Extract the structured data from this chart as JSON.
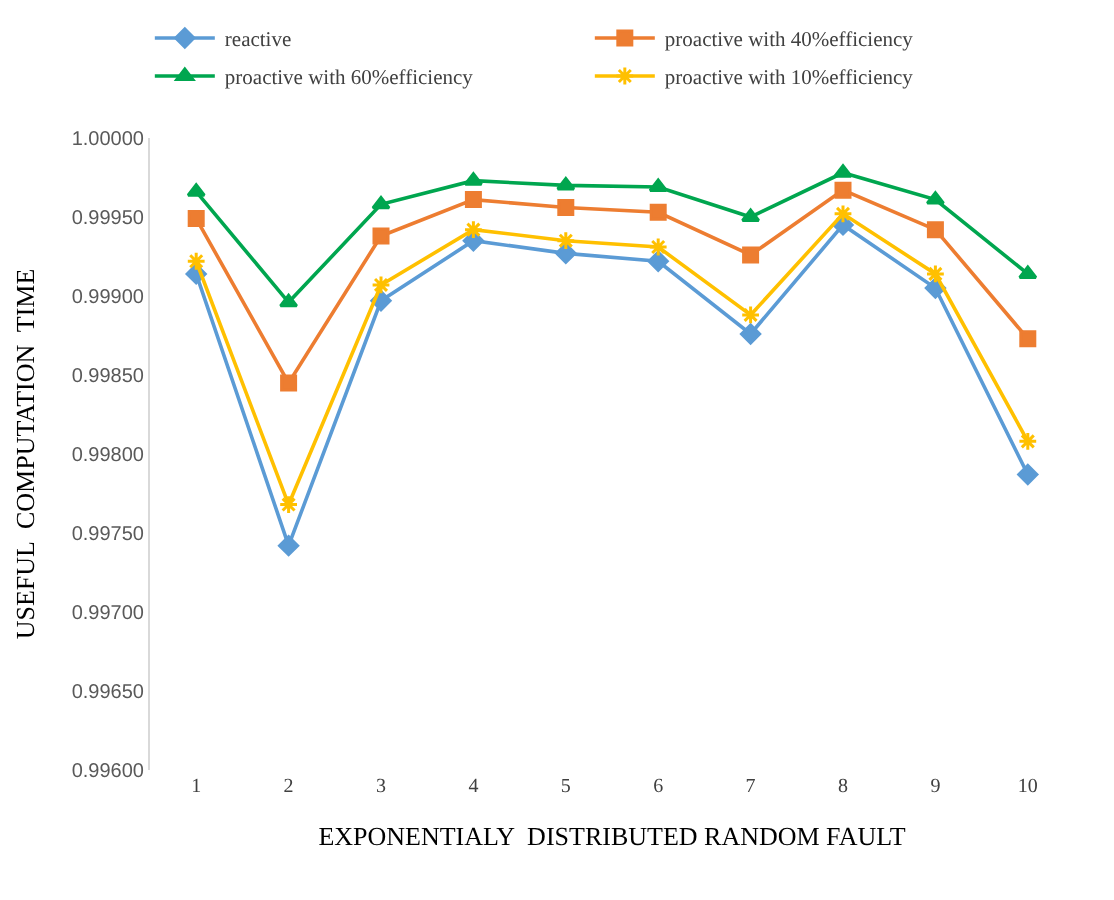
{
  "chart_data": {
    "type": "line",
    "xlabel": "EXPONENTIALY  DISTRIBUTED RANDOM FAULT",
    "ylabel": "USEFUL  COMPUTATION  TIME",
    "categories": [
      "1",
      "2",
      "3",
      "4",
      "5",
      "6",
      "7",
      "8",
      "9",
      "10"
    ],
    "ylim": [
      0.996,
      1.0
    ],
    "yticks": [
      {
        "value": 0.996,
        "label": "0.99600"
      },
      {
        "value": 0.9965,
        "label": "0.99650"
      },
      {
        "value": 0.997,
        "label": "0.99700"
      },
      {
        "value": 0.9975,
        "label": "0.99750"
      },
      {
        "value": 0.998,
        "label": "0.99800"
      },
      {
        "value": 0.9985,
        "label": "0.99850"
      },
      {
        "value": 0.999,
        "label": "0.99900"
      },
      {
        "value": 0.9995,
        "label": "0.99950"
      },
      {
        "value": 1.0,
        "label": "1.00000"
      }
    ],
    "legend": "top",
    "line_style": "solid",
    "series": [
      {
        "name": "reactive",
        "color": "#5b9bd5",
        "marker": "diamond",
        "values": [
          0.99914,
          0.99742,
          0.99897,
          0.99935,
          0.99927,
          0.99922,
          0.99876,
          0.99945,
          0.99905,
          0.99787
        ]
      },
      {
        "name": "proactive with 40%efficiency",
        "color": "#ed7d31",
        "marker": "square",
        "values": [
          0.99949,
          0.99845,
          0.99938,
          0.99961,
          0.99956,
          0.99953,
          0.99926,
          0.99967,
          0.99942,
          0.99873
        ]
      },
      {
        "name": "proactive with 60%efficiency",
        "color": "#00a64f",
        "marker": "triangle",
        "values": [
          0.99966,
          0.99896,
          0.99958,
          0.99973,
          0.9997,
          0.99969,
          0.9995,
          0.99978,
          0.99961,
          0.99914
        ]
      },
      {
        "name": "proactive with 10%efficiency",
        "color": "#ffc000",
        "marker": "cross",
        "values": [
          0.99922,
          0.99768,
          0.99907,
          0.99942,
          0.99935,
          0.99931,
          0.99888,
          0.99952,
          0.99914,
          0.99808
        ]
      }
    ]
  }
}
